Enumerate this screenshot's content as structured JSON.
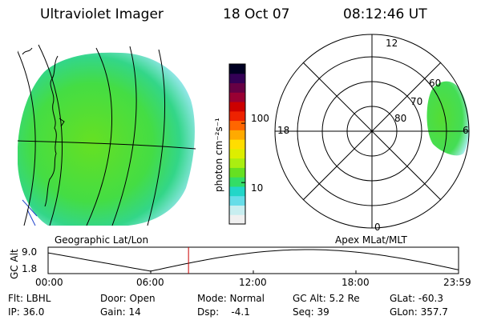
{
  "header": {
    "instrument": "Ultraviolet Imager",
    "date": "18 Oct 07",
    "time": "08:12:46 UT"
  },
  "geo_panel": {
    "label": "Geographic Lat/Lon"
  },
  "polar_panel": {
    "label": "Apex MLat/MLT",
    "mlt_labels": {
      "top": "12",
      "bottom": "0",
      "left": "18",
      "right": "6"
    },
    "lat_labels": [
      "60",
      "70",
      "80"
    ]
  },
  "colorbar": {
    "unit_label": "photon cm⁻²s⁻¹",
    "ticks": [
      {
        "label": "100",
        "value": 100
      },
      {
        "label": "10",
        "value": 10
      }
    ],
    "colors": [
      "#f0f0f0",
      "#c8eef0",
      "#66dde8",
      "#22d6c8",
      "#33dd66",
      "#66e022",
      "#aaee11",
      "#ddee00",
      "#ffdd00",
      "#ffaa00",
      "#ff6600",
      "#ee2200",
      "#cc0000",
      "#990033",
      "#660044",
      "#330055",
      "#000022"
    ]
  },
  "altitude_plot": {
    "ylabel": "GC Alt",
    "ytick_top": "9.0",
    "ytick_bottom": "1.8",
    "xticks": [
      "00:00",
      "06:00",
      "12:00",
      "18:00",
      "23:59"
    ],
    "current_time_hours": 8.21
  },
  "info": {
    "flt": "Flt: LBHL",
    "ip": "IP: 36.0",
    "door": "Door: Open",
    "gain": "Gain: 14",
    "mode": "Mode: Normal",
    "dsp": "Dsp:    -4.1",
    "gc_alt": "GC Alt: 5.2 Re",
    "seq": "Seq: 39",
    "glat": "GLat: -60.3",
    "glon": "GLon: 357.7"
  },
  "colors": {
    "image_green": "#55dd33",
    "image_cyan": "#aaeef0",
    "marker_red": "#cc0000"
  }
}
